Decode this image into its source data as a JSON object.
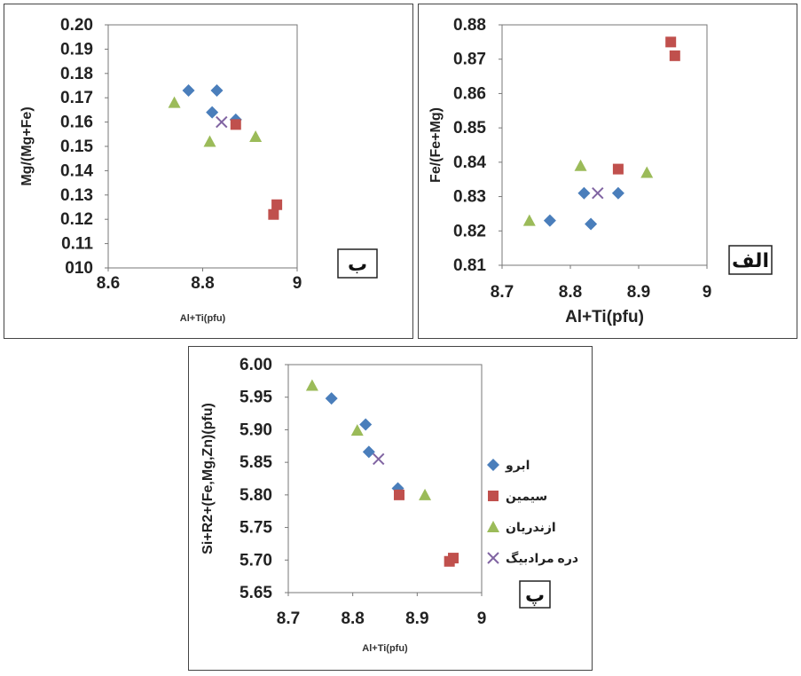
{
  "chart_data": [
    {
      "id": "alef",
      "type": "scatter",
      "panel_label": "الف",
      "xlabel": "Al+Ti(pfu)",
      "ylabel": "Fe/(Fe+Mg)",
      "xlim": [
        8.7,
        9.0
      ],
      "ylim": [
        0.81,
        0.88
      ],
      "xticks": [
        "8.7",
        "8.8",
        "8.9",
        "9"
      ],
      "yticks": [
        "0.81",
        "0.82",
        "0.83",
        "0.84",
        "0.85",
        "0.86",
        "0.87",
        "0.88"
      ],
      "grid": false,
      "series": [
        {
          "key": "abru",
          "points": [
            [
              8.77,
              0.823
            ],
            [
              8.82,
              0.831
            ],
            [
              8.83,
              0.822
            ],
            [
              8.87,
              0.831
            ]
          ]
        },
        {
          "key": "simin",
          "points": [
            [
              8.87,
              0.838
            ],
            [
              8.947,
              0.875
            ],
            [
              8.953,
              0.871
            ]
          ]
        },
        {
          "key": "azandaryan",
          "points": [
            [
              8.74,
              0.823
            ],
            [
              8.815,
              0.839
            ],
            [
              8.912,
              0.837
            ]
          ]
        },
        {
          "key": "darre",
          "points": [
            [
              8.84,
              0.831
            ]
          ]
        }
      ]
    },
    {
      "id": "be",
      "type": "scatter",
      "panel_label": "ب",
      "xlabel": "Al+Ti(pfu)",
      "ylabel": "Mg/(Mg+Fe)",
      "xlim": [
        8.6,
        9.0
      ],
      "ylim": [
        0.1,
        0.2
      ],
      "xticks": [
        "8.6",
        "8.8",
        "9"
      ],
      "yticks": [
        "010",
        "0.11",
        "0.12",
        "0.13",
        "0.14",
        "0.15",
        "0.16",
        "0.17",
        "0.18",
        "0.19",
        "0.20"
      ],
      "grid": false,
      "series": [
        {
          "key": "abru",
          "points": [
            [
              8.77,
              0.173
            ],
            [
              8.83,
              0.173
            ],
            [
              8.82,
              0.164
            ],
            [
              8.87,
              0.161
            ]
          ]
        },
        {
          "key": "simin",
          "points": [
            [
              8.87,
              0.159
            ],
            [
              8.957,
              0.126
            ],
            [
              8.95,
              0.122
            ]
          ]
        },
        {
          "key": "azandaryan",
          "points": [
            [
              8.74,
              0.168
            ],
            [
              8.815,
              0.152
            ],
            [
              8.912,
              0.154
            ]
          ]
        },
        {
          "key": "darre",
          "points": [
            [
              8.84,
              0.16
            ]
          ]
        }
      ]
    },
    {
      "id": "pe",
      "type": "scatter",
      "panel_label": "پ",
      "xlabel": "Al+Ti(pfu)",
      "ylabel": "Si+R2+(Fe,Mg,Zn)(pfu)",
      "xlim": [
        8.7,
        9.0
      ],
      "ylim": [
        5.65,
        6.0
      ],
      "xticks": [
        "8.7",
        "8.8",
        "8.9",
        "9"
      ],
      "yticks": [
        "5.65",
        "5.70",
        "5.75",
        "5.80",
        "5.85",
        "5.90",
        "5.95",
        "6.00"
      ],
      "grid": false,
      "legend_position": "right",
      "series": [
        {
          "key": "abru",
          "points": [
            [
              8.767,
              5.948
            ],
            [
              8.82,
              5.908
            ],
            [
              8.825,
              5.866
            ],
            [
              8.87,
              5.81
            ]
          ]
        },
        {
          "key": "simin",
          "points": [
            [
              8.872,
              5.8
            ],
            [
              8.95,
              5.698
            ],
            [
              8.956,
              5.703
            ]
          ]
        },
        {
          "key": "azandaryan",
          "points": [
            [
              8.737,
              5.968
            ],
            [
              8.807,
              5.899
            ],
            [
              8.912,
              5.8
            ]
          ]
        },
        {
          "key": "darre",
          "points": [
            [
              8.84,
              5.855
            ]
          ]
        }
      ]
    }
  ],
  "legend": [
    {
      "key": "abru",
      "label": "ابرو",
      "marker": "diamond",
      "color": "#4a7ebb"
    },
    {
      "key": "simin",
      "label": "سیمین",
      "marker": "square",
      "color": "#c0504d"
    },
    {
      "key": "azandaryan",
      "label": "ازندریان",
      "marker": "triangle",
      "color": "#9bbb59"
    },
    {
      "key": "darre",
      "label": "دره مرادبیگ",
      "marker": "cross",
      "color": "#8064a2"
    }
  ]
}
